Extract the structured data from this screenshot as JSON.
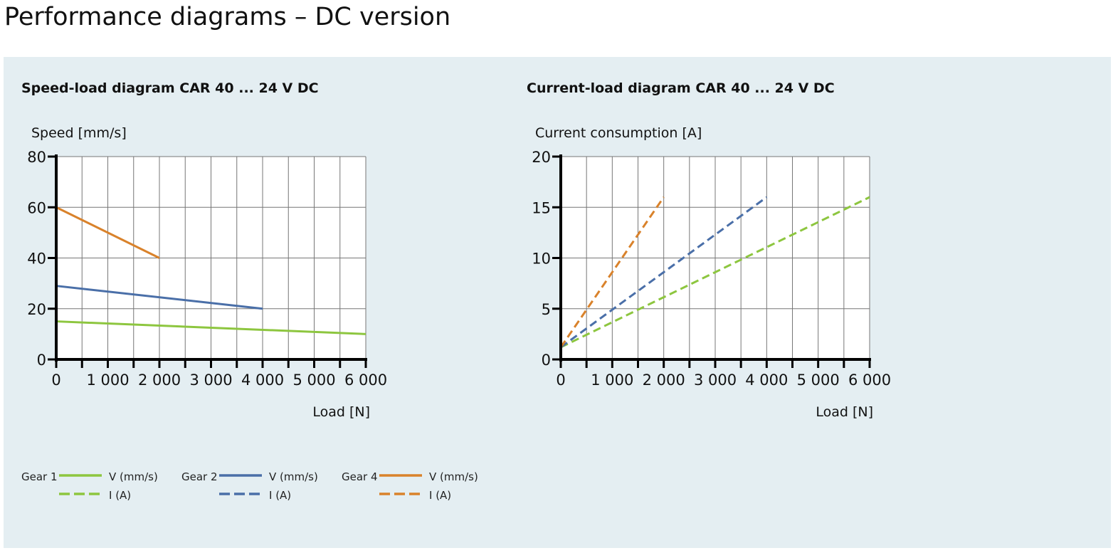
{
  "page_title": "Performance diagrams – DC version",
  "colors": {
    "gear1": "#8dc63f",
    "gear2": "#4a6fa8",
    "gear4": "#d9822b",
    "panel": "#e4eef2"
  },
  "chart_data": [
    {
      "type": "line",
      "title": "Speed-load diagram CAR 40 ... 24 V DC",
      "xlabel": "Load [N]",
      "ylabel": "Speed [mm/s]",
      "xlim": [
        0,
        6000
      ],
      "ylim": [
        0,
        80
      ],
      "xticks": [
        0,
        1000,
        2000,
        3000,
        4000,
        5000,
        6000
      ],
      "xtick_labels": [
        "0",
        "1 000",
        "2 000",
        "3 000",
        "4 000",
        "5 000",
        "6 000"
      ],
      "yticks": [
        0,
        20,
        40,
        60,
        80
      ],
      "ytick_labels": [
        "0",
        "20",
        "40",
        "60",
        "80"
      ],
      "grid": true,
      "x_grid_step": 500,
      "series": [
        {
          "name": "Gear 1 V (mm/s)",
          "color_key": "gear1",
          "dashed": false,
          "x": [
            0,
            6000
          ],
          "y": [
            15,
            10
          ]
        },
        {
          "name": "Gear 2 V (mm/s)",
          "color_key": "gear2",
          "dashed": false,
          "x": [
            0,
            4000
          ],
          "y": [
            29,
            20
          ]
        },
        {
          "name": "Gear 4 V (mm/s)",
          "color_key": "gear4",
          "dashed": false,
          "x": [
            0,
            2000
          ],
          "y": [
            60,
            40
          ]
        }
      ]
    },
    {
      "type": "line",
      "title": "Current-load diagram CAR 40 ... 24 V DC",
      "xlabel": "Load [N]",
      "ylabel": "Current consumption [A]",
      "xlim": [
        0,
        6000
      ],
      "ylim": [
        0,
        20
      ],
      "xticks": [
        0,
        1000,
        2000,
        3000,
        4000,
        5000,
        6000
      ],
      "xtick_labels": [
        "0",
        "1 000",
        "2 000",
        "3 000",
        "4 000",
        "5 000",
        "6 000"
      ],
      "yticks": [
        0,
        5,
        10,
        15,
        20
      ],
      "ytick_labels": [
        "0",
        "5",
        "10",
        "15",
        "20"
      ],
      "grid": true,
      "x_grid_step": 500,
      "series": [
        {
          "name": "Gear 1 I (A)",
          "color_key": "gear1",
          "dashed": true,
          "x": [
            0,
            6000
          ],
          "y": [
            1.2,
            16
          ]
        },
        {
          "name": "Gear 2 I (A)",
          "color_key": "gear2",
          "dashed": true,
          "x": [
            0,
            4000
          ],
          "y": [
            1.2,
            16
          ]
        },
        {
          "name": "Gear 4 I (A)",
          "color_key": "gear4",
          "dashed": true,
          "x": [
            0,
            2000
          ],
          "y": [
            1.2,
            16
          ]
        }
      ]
    }
  ],
  "legend": [
    {
      "gear": "Gear 1",
      "color_key": "gear1",
      "v_label": "V (mm/s)",
      "i_label": "I (A)"
    },
    {
      "gear": "Gear 2",
      "color_key": "gear2",
      "v_label": "V (mm/s)",
      "i_label": "I (A)"
    },
    {
      "gear": "Gear 4",
      "color_key": "gear4",
      "v_label": "V (mm/s)",
      "i_label": "I (A)"
    }
  ]
}
